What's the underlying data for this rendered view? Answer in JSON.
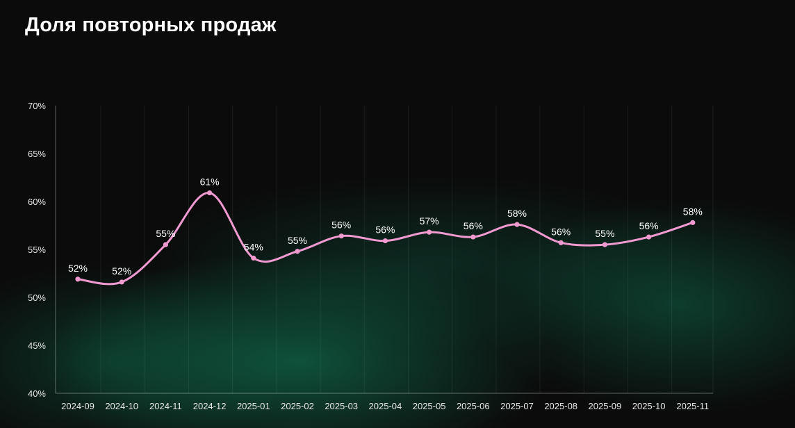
{
  "title": "Доля повторных продаж",
  "colors": {
    "background": "#0b0b0b",
    "line": "#f09ad0",
    "accent_glow": "#128c62"
  },
  "chart_data": {
    "type": "line",
    "title": "Доля повторных продаж",
    "xlabel": "",
    "ylabel": "",
    "x": [
      "2024-09",
      "2024-10",
      "2024-11",
      "2024-12",
      "2025-01",
      "2025-02",
      "2025-03",
      "2025-04",
      "2025-05",
      "2025-06",
      "2025-07",
      "2025-08",
      "2025-09",
      "2025-10",
      "2025-11"
    ],
    "values": [
      51.9,
      51.6,
      55.5,
      60.9,
      54.1,
      54.8,
      56.4,
      55.9,
      56.8,
      56.3,
      57.6,
      55.7,
      55.5,
      56.3,
      57.8
    ],
    "data_labels": [
      "52%",
      "52%",
      "55%",
      "61%",
      "54%",
      "55%",
      "56%",
      "56%",
      "57%",
      "56%",
      "58%",
      "56%",
      "55%",
      "56%",
      "58%"
    ],
    "y_ticks": [
      "40%",
      "45%",
      "50%",
      "55%",
      "60%",
      "65%",
      "70%"
    ],
    "ylim": [
      40,
      70
    ],
    "grid": "vertical",
    "legend": "none"
  }
}
